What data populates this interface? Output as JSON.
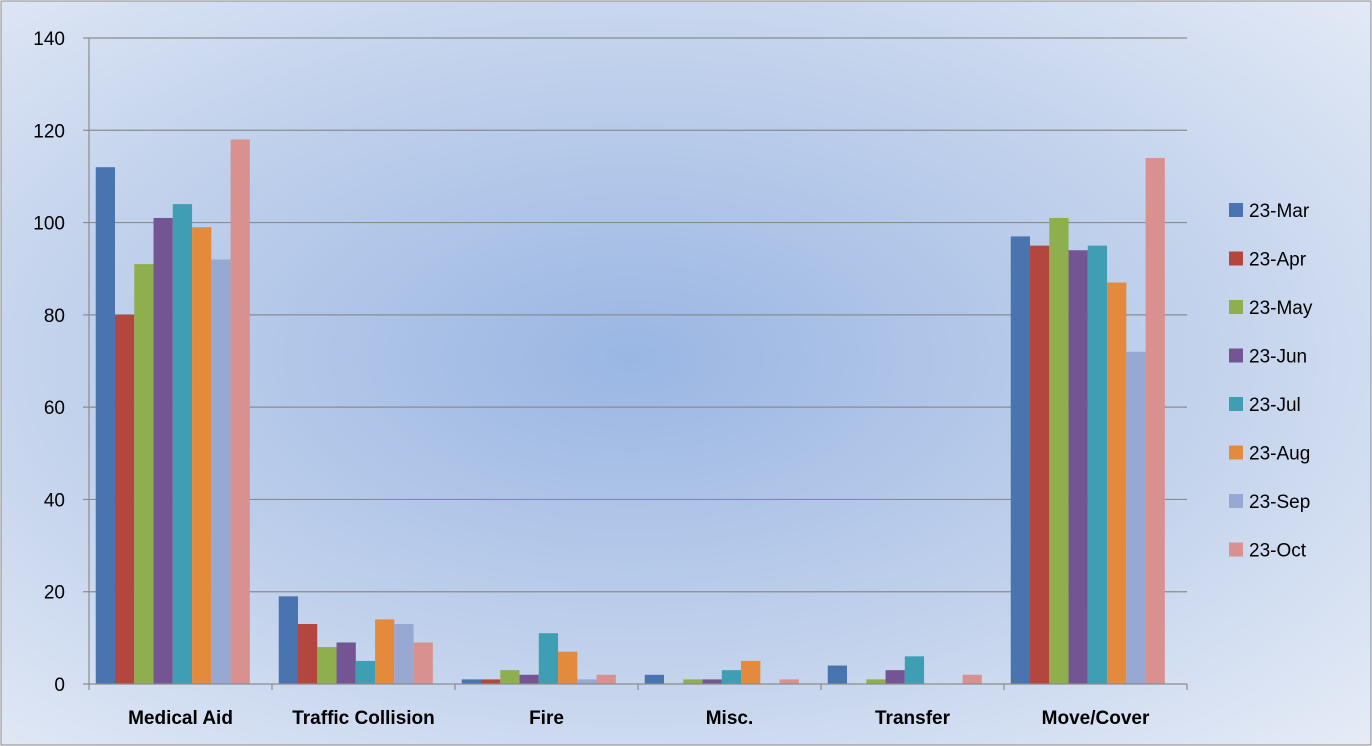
{
  "chart_data": {
    "type": "bar",
    "categories": [
      "Medical Aid",
      "Traffic Collision",
      "Fire",
      "Misc.",
      "Transfer",
      "Move/Cover"
    ],
    "series": [
      {
        "name": "23-Mar",
        "color": "#4a74b0",
        "values": [
          112,
          19,
          1,
          2,
          4,
          97
        ]
      },
      {
        "name": "23-Apr",
        "color": "#b3463f",
        "values": [
          80,
          13,
          1,
          0,
          0,
          95
        ]
      },
      {
        "name": "23-May",
        "color": "#8faf4e",
        "values": [
          91,
          8,
          3,
          1,
          1,
          101
        ]
      },
      {
        "name": "23-Jun",
        "color": "#725592",
        "values": [
          101,
          9,
          2,
          1,
          3,
          94
        ]
      },
      {
        "name": "23-Jul",
        "color": "#3e9fb4",
        "values": [
          104,
          5,
          11,
          3,
          6,
          95
        ]
      },
      {
        "name": "23-Aug",
        "color": "#e48a3c",
        "values": [
          99,
          14,
          7,
          5,
          0,
          87
        ]
      },
      {
        "name": "23-Sep",
        "color": "#97a9d3",
        "values": [
          92,
          13,
          1,
          0,
          0,
          72
        ]
      },
      {
        "name": "23-Oct",
        "color": "#d9918f",
        "values": [
          118,
          9,
          2,
          1,
          2,
          114
        ]
      }
    ],
    "y_ticks": [
      "0",
      "20",
      "40",
      "60",
      "80",
      "100",
      "120",
      "140"
    ],
    "ylim": [
      0,
      140
    ],
    "grid": true,
    "legend_position": "right",
    "title": "",
    "xlabel": "",
    "ylabel": ""
  }
}
